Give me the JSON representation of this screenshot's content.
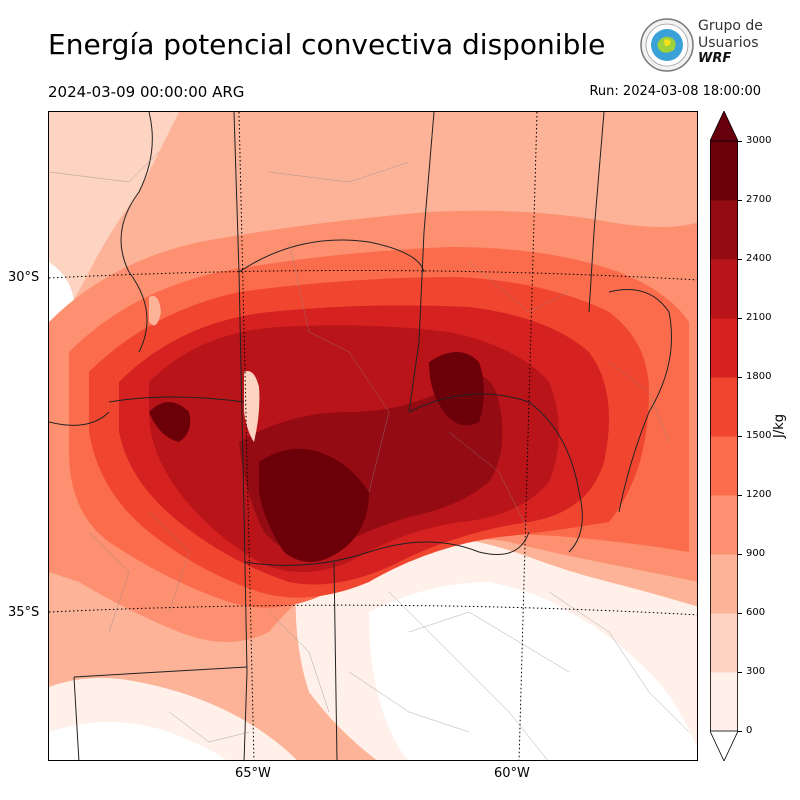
{
  "header": {
    "title": "Energía potencial convectiva disponible",
    "valid_time": "2024-03-09 00:00:00 ARG",
    "run": "Run: 2024-03-08 18:00:00"
  },
  "logo": {
    "line1": "Grupo de",
    "line2": "Usuarios",
    "line3": "WRF"
  },
  "map": {
    "lat_labels": [
      "30°S",
      "35°S"
    ],
    "lon_labels": [
      "65°W",
      "60°W"
    ]
  },
  "colorbar": {
    "unit": "J/kg",
    "ticks": [
      "0",
      "300",
      "600",
      "900",
      "1200",
      "1500",
      "1800",
      "2100",
      "2400",
      "2700",
      "3000"
    ],
    "colors": [
      "#fff0e9",
      "#fdd3c1",
      "#fcb398",
      "#fc9070",
      "#fb6c4c",
      "#f0462f",
      "#d52120",
      "#b81419",
      "#950b13",
      "#6c0009"
    ],
    "extend_color": "#67000d"
  }
}
